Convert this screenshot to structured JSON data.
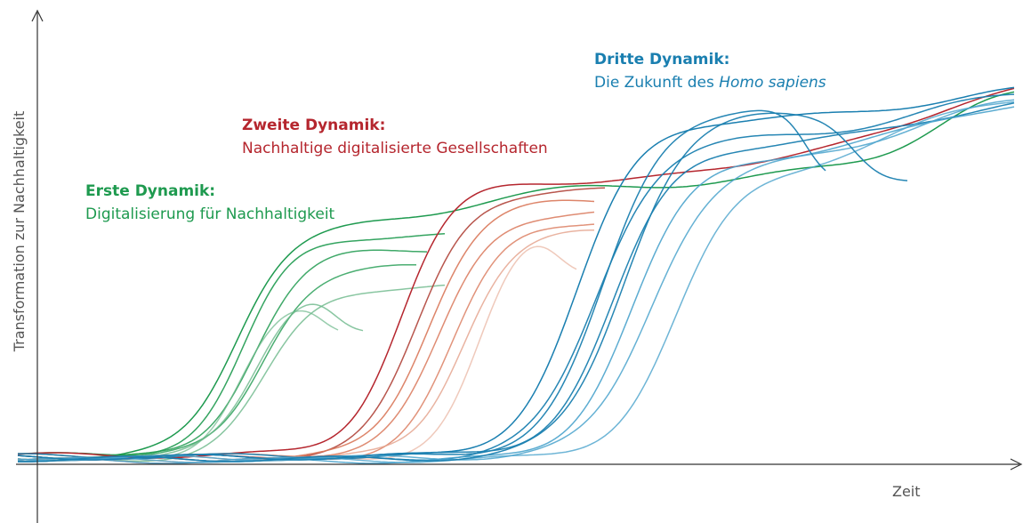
{
  "axes": {
    "y_label": "Transformation zur Nachhaltigkeit",
    "x_label": "Zeit"
  },
  "dynamics": [
    {
      "title": "Erste Dynamik:",
      "subtitle": [
        "Digitalisierung für Nachhaltigkeit"
      ]
    },
    {
      "title": "Zweite Dynamik:",
      "subtitle": [
        "Nachhaltige digitalisierte Gesellschaften"
      ]
    },
    {
      "title": "Dritte Dynamik:",
      "subtitle": [
        "Die Zukunft des ",
        "Homo sapiens"
      ]
    }
  ]
}
